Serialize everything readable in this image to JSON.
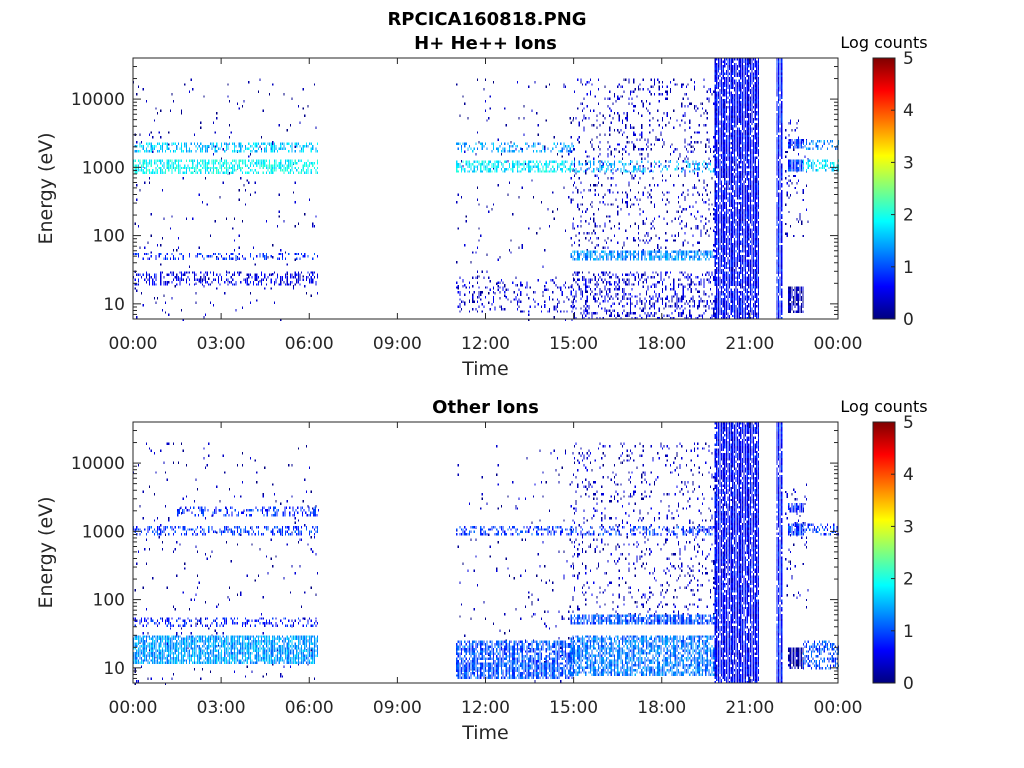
{
  "figure": {
    "title": "RPCICA160818.PNG"
  },
  "colormap": [
    "#00007f",
    "#0000ff",
    "#007fff",
    "#00ffff",
    "#7fff7f",
    "#ffff00",
    "#ff7f00",
    "#ff0000",
    "#7f0000"
  ],
  "chart_data": [
    {
      "type": "heatmap",
      "title": "H+ He++ Ions",
      "xlabel": "Time",
      "ylabel": "Energy (eV)",
      "x_ticks": [
        "00:00",
        "03:00",
        "06:00",
        "09:00",
        "12:00",
        "15:00",
        "18:00",
        "21:00",
        "00:00"
      ],
      "xlim_hours": [
        0,
        24
      ],
      "y_scale": "log",
      "ylim": [
        6,
        40000
      ],
      "y_ticks": [
        {
          "value": 10,
          "label": "10"
        },
        {
          "value": 100,
          "label": "100"
        },
        {
          "value": 1000,
          "label": "1000"
        },
        {
          "value": 10000,
          "label": "10000"
        }
      ],
      "colorbar": {
        "label": "Log counts",
        "range": [
          0,
          5
        ],
        "ticks": [
          "0",
          "1",
          "2",
          "3",
          "4",
          "5"
        ]
      },
      "regions": [
        {
          "t0": 0.0,
          "t1": 6.3,
          "e0": 6,
          "e1": 20000,
          "level": 0.2,
          "density": 0.02
        },
        {
          "t0": 0.0,
          "t1": 6.3,
          "e0": 1700,
          "e1": 2300,
          "level": 1.6,
          "density": 0.5
        },
        {
          "t0": 0.0,
          "t1": 6.3,
          "e0": 800,
          "e1": 1300,
          "level": 1.9,
          "density": 0.6
        },
        {
          "t0": 0.0,
          "t1": 6.3,
          "e0": 44,
          "e1": 56,
          "level": 0.8,
          "density": 0.3
        },
        {
          "t0": 0.0,
          "t1": 6.3,
          "e0": 20,
          "e1": 30,
          "level": 0.5,
          "density": 0.35
        },
        {
          "t0": 11.0,
          "t1": 15.0,
          "e0": 6,
          "e1": 20000,
          "level": 0.2,
          "density": 0.02
        },
        {
          "t0": 11.0,
          "t1": 15.0,
          "e0": 1700,
          "e1": 2300,
          "level": 1.4,
          "density": 0.35
        },
        {
          "t0": 11.0,
          "t1": 15.0,
          "e0": 850,
          "e1": 1250,
          "level": 1.8,
          "density": 0.55
        },
        {
          "t0": 11.0,
          "t1": 15.0,
          "e0": 8,
          "e1": 25,
          "level": 0.4,
          "density": 0.15
        },
        {
          "t0": 14.9,
          "t1": 19.8,
          "e0": 60,
          "e1": 20000,
          "level": 0.3,
          "density": 0.12
        },
        {
          "t0": 14.9,
          "t1": 19.8,
          "e0": 850,
          "e1": 1250,
          "level": 1.5,
          "density": 0.35
        },
        {
          "t0": 14.9,
          "t1": 19.8,
          "e0": 45,
          "e1": 60,
          "level": 1.3,
          "density": 0.7
        },
        {
          "t0": 14.9,
          "t1": 19.8,
          "e0": 6,
          "e1": 30,
          "level": 0.4,
          "density": 0.3
        },
        {
          "t0": 19.8,
          "t1": 21.3,
          "e0": 6,
          "e1": 40000,
          "level": 0.6,
          "density": 0.85
        },
        {
          "t0": 21.9,
          "t1": 22.1,
          "e0": 6,
          "e1": 40000,
          "level": 0.7,
          "density": 0.9
        },
        {
          "t0": 22.2,
          "t1": 23.0,
          "e0": 100,
          "e1": 5000,
          "level": 0.3,
          "density": 0.1
        },
        {
          "t0": 22.3,
          "t1": 22.8,
          "e0": 2000,
          "e1": 2600,
          "level": 0.8,
          "density": 0.9
        },
        {
          "t0": 22.3,
          "t1": 22.8,
          "e0": 900,
          "e1": 1300,
          "level": 0.9,
          "density": 0.9
        },
        {
          "t0": 22.3,
          "t1": 22.8,
          "e0": 8,
          "e1": 18,
          "level": 0.2,
          "density": 0.85
        },
        {
          "t0": 22.8,
          "t1": 24.0,
          "e0": 1900,
          "e1": 2500,
          "level": 1.3,
          "density": 0.35
        },
        {
          "t0": 22.8,
          "t1": 24.0,
          "e0": 900,
          "e1": 1300,
          "level": 1.7,
          "density": 0.5
        }
      ]
    },
    {
      "type": "heatmap",
      "title": "Other Ions",
      "xlabel": "Time",
      "ylabel": "Energy (eV)",
      "x_ticks": [
        "00:00",
        "03:00",
        "06:00",
        "09:00",
        "12:00",
        "15:00",
        "18:00",
        "21:00",
        "00:00"
      ],
      "xlim_hours": [
        0,
        24
      ],
      "y_scale": "log",
      "ylim": [
        6,
        40000
      ],
      "y_ticks": [
        {
          "value": 10,
          "label": "10"
        },
        {
          "value": 100,
          "label": "100"
        },
        {
          "value": 1000,
          "label": "1000"
        },
        {
          "value": 10000,
          "label": "10000"
        }
      ],
      "colorbar": {
        "label": "Log counts",
        "range": [
          0,
          5
        ],
        "ticks": [
          "0",
          "1",
          "2",
          "3",
          "4",
          "5"
        ]
      },
      "regions": [
        {
          "t0": 0.0,
          "t1": 6.3,
          "e0": 6,
          "e1": 20000,
          "level": 0.2,
          "density": 0.02
        },
        {
          "t0": 1.5,
          "t1": 6.3,
          "e0": 1800,
          "e1": 2300,
          "level": 0.8,
          "density": 0.35
        },
        {
          "t0": 0.0,
          "t1": 6.3,
          "e0": 900,
          "e1": 1200,
          "level": 0.9,
          "density": 0.4
        },
        {
          "t0": 0.0,
          "t1": 6.3,
          "e0": 40,
          "e1": 55,
          "level": 0.7,
          "density": 0.3
        },
        {
          "t0": 0.0,
          "t1": 6.3,
          "e0": 12,
          "e1": 30,
          "level": 1.4,
          "density": 0.8
        },
        {
          "t0": 11.0,
          "t1": 15.0,
          "e0": 6,
          "e1": 20000,
          "level": 0.2,
          "density": 0.02
        },
        {
          "t0": 11.0,
          "t1": 15.0,
          "e0": 900,
          "e1": 1200,
          "level": 0.9,
          "density": 0.4
        },
        {
          "t0": 11.0,
          "t1": 15.0,
          "e0": 7,
          "e1": 25,
          "level": 1.0,
          "density": 0.75
        },
        {
          "t0": 14.9,
          "t1": 19.8,
          "e0": 60,
          "e1": 20000,
          "level": 0.3,
          "density": 0.1
        },
        {
          "t0": 14.9,
          "t1": 19.8,
          "e0": 900,
          "e1": 1200,
          "level": 0.9,
          "density": 0.35
        },
        {
          "t0": 14.9,
          "t1": 19.8,
          "e0": 45,
          "e1": 60,
          "level": 1.0,
          "density": 0.8
        },
        {
          "t0": 14.9,
          "t1": 19.8,
          "e0": 8,
          "e1": 30,
          "level": 1.2,
          "density": 0.7
        },
        {
          "t0": 19.8,
          "t1": 21.3,
          "e0": 6,
          "e1": 40000,
          "level": 0.6,
          "density": 0.85
        },
        {
          "t0": 21.9,
          "t1": 22.1,
          "e0": 6,
          "e1": 40000,
          "level": 0.7,
          "density": 0.9
        },
        {
          "t0": 22.2,
          "t1": 23.0,
          "e0": 80,
          "e1": 5000,
          "level": 0.3,
          "density": 0.08
        },
        {
          "t0": 22.3,
          "t1": 22.8,
          "e0": 2000,
          "e1": 2600,
          "level": 0.8,
          "density": 0.9
        },
        {
          "t0": 22.3,
          "t1": 22.8,
          "e0": 900,
          "e1": 1300,
          "level": 0.9,
          "density": 0.9
        },
        {
          "t0": 22.3,
          "t1": 22.8,
          "e0": 10,
          "e1": 20,
          "level": 0.2,
          "density": 0.85
        },
        {
          "t0": 22.8,
          "t1": 24.0,
          "e0": 900,
          "e1": 1300,
          "level": 0.9,
          "density": 0.35
        },
        {
          "t0": 22.8,
          "t1": 24.0,
          "e0": 10,
          "e1": 25,
          "level": 1.0,
          "density": 0.5
        }
      ]
    }
  ]
}
